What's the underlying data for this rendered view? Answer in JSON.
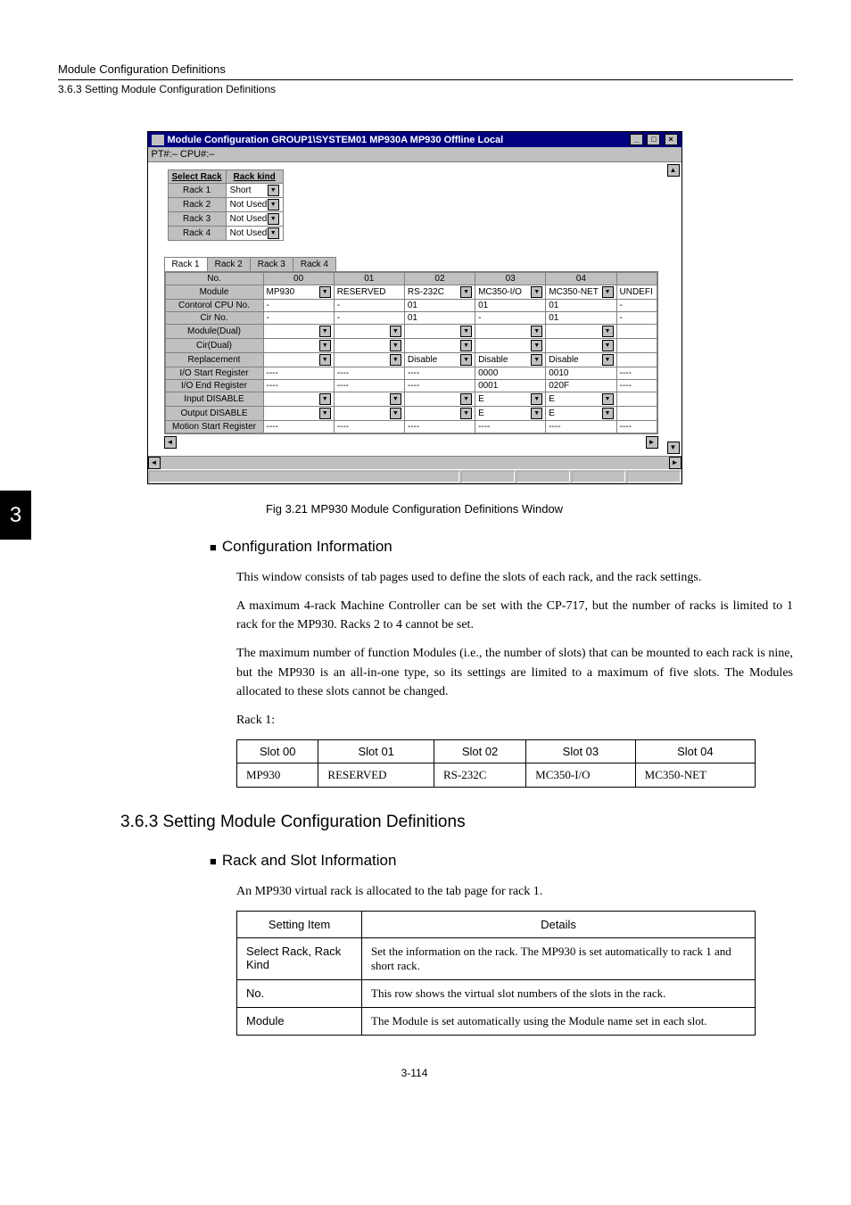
{
  "page_tab": "3",
  "header": {
    "title": "Module Configuration Definitions",
    "sub": "3.6.3  Setting Module Configuration Definitions"
  },
  "window": {
    "title": "Module Configuration    GROUP1\\SYSTEM01  MP930A  MP930         Offline  Local",
    "sub": "PT#:– CPU#:–",
    "rack_header_left": "Select Rack",
    "rack_header_right": "Rack kind",
    "racks": [
      {
        "label": "Rack 1",
        "kind": "Short"
      },
      {
        "label": "Rack 2",
        "kind": "Not Used"
      },
      {
        "label": "Rack 3",
        "kind": "Not Used"
      },
      {
        "label": "Rack 4",
        "kind": "Not Used"
      }
    ],
    "tabs": [
      "Rack 1",
      "Rack 2",
      "Rack 3",
      "Rack 4"
    ],
    "grid": {
      "col_no_header": "No.",
      "cols": [
        "00",
        "01",
        "02",
        "03",
        "04",
        ""
      ],
      "rows": [
        {
          "h": "Module",
          "c": [
            {
              "t": "MP930",
              "d": 1
            },
            {
              "t": "RESERVED"
            },
            {
              "t": "RS-232C",
              "d": 1
            },
            {
              "t": "MC350-I/O",
              "d": 1
            },
            {
              "t": "MC350-NET",
              "d": 1
            },
            {
              "t": "UNDEFI"
            }
          ]
        },
        {
          "h": "Contorol CPU No.",
          "c": [
            {
              "t": "-"
            },
            {
              "t": "-"
            },
            {
              "t": "01"
            },
            {
              "t": "01"
            },
            {
              "t": "01"
            },
            {
              "t": "-"
            }
          ]
        },
        {
          "h": "Cir No.",
          "c": [
            {
              "t": "-"
            },
            {
              "t": "-"
            },
            {
              "t": "01"
            },
            {
              "t": "-"
            },
            {
              "t": "01"
            },
            {
              "t": "-"
            }
          ]
        },
        {
          "h": "Module(Dual)",
          "c": [
            {
              "t": "",
              "d": 1
            },
            {
              "t": "",
              "d": 1
            },
            {
              "t": "",
              "d": 1
            },
            {
              "t": "",
              "d": 1
            },
            {
              "t": "",
              "d": 1
            },
            {
              "t": ""
            }
          ]
        },
        {
          "h": "Cir(Dual)",
          "c": [
            {
              "t": "",
              "d": 1
            },
            {
              "t": "",
              "d": 1
            },
            {
              "t": "",
              "d": 1
            },
            {
              "t": "",
              "d": 1
            },
            {
              "t": "",
              "d": 1
            },
            {
              "t": ""
            }
          ]
        },
        {
          "h": "Replacement",
          "c": [
            {
              "t": "",
              "d": 1
            },
            {
              "t": "",
              "d": 1
            },
            {
              "t": "Disable",
              "d": 1
            },
            {
              "t": "Disable",
              "d": 1
            },
            {
              "t": "Disable",
              "d": 1
            },
            {
              "t": ""
            }
          ]
        },
        {
          "h": "I/O Start Register",
          "c": [
            {
              "t": "----"
            },
            {
              "t": "----"
            },
            {
              "t": "----"
            },
            {
              "t": "0000"
            },
            {
              "t": "0010"
            },
            {
              "t": "----"
            }
          ]
        },
        {
          "h": "I/O End Register",
          "c": [
            {
              "t": "----"
            },
            {
              "t": "----"
            },
            {
              "t": "----"
            },
            {
              "t": "0001"
            },
            {
              "t": "020F"
            },
            {
              "t": "----"
            }
          ]
        },
        {
          "h": "Input DISABLE",
          "c": [
            {
              "t": "",
              "d": 1
            },
            {
              "t": "",
              "d": 1
            },
            {
              "t": "",
              "d": 1
            },
            {
              "t": "E",
              "d": 1
            },
            {
              "t": "E",
              "d": 1
            },
            {
              "t": ""
            }
          ]
        },
        {
          "h": "Output DISABLE",
          "c": [
            {
              "t": "",
              "d": 1
            },
            {
              "t": "",
              "d": 1
            },
            {
              "t": "",
              "d": 1
            },
            {
              "t": "E",
              "d": 1
            },
            {
              "t": "E",
              "d": 1
            },
            {
              "t": ""
            }
          ]
        },
        {
          "h": "Motion Start Register",
          "c": [
            {
              "t": "----"
            },
            {
              "t": "----"
            },
            {
              "t": "----"
            },
            {
              "t": "----"
            },
            {
              "t": "----"
            },
            {
              "t": "----"
            }
          ]
        }
      ]
    }
  },
  "fig_caption": "Fig 3.21  MP930 Module Configuration Definitions Window",
  "section1": {
    "title": "Configuration Information",
    "p1": "This window consists of tab pages used to define the slots of each rack, and the rack settings.",
    "p2": "A maximum 4-rack Machine Controller can be set with the CP-717, but the number of racks is limited to 1 rack for the MP930. Racks 2 to 4 cannot be set.",
    "p3": "The maximum number of function Modules (i.e., the number of slots) that can be mounted to each rack is nine, but the MP930 is an all-in-one type, so its settings are limited to a maximum of five slots. The Modules allocated to these slots cannot be changed.",
    "p4": "Rack 1:"
  },
  "slot_table": {
    "headers": [
      "Slot 00",
      "Slot 01",
      "Slot 02",
      "Slot 03",
      "Slot 04"
    ],
    "row": [
      "MP930",
      "RESERVED",
      "RS-232C",
      "MC350-I/O",
      "MC350-NET"
    ]
  },
  "h2": "3.6.3  Setting Module Configuration Definitions",
  "section2": {
    "title": "Rack and Slot Information",
    "p1": "An MP930 virtual rack is allocated to the tab page for rack 1."
  },
  "setting_table": {
    "headers": [
      "Setting Item",
      "Details"
    ],
    "rows": [
      {
        "item": "Select Rack, Rack Kind",
        "details": "Set the information on the rack. The MP930 is set automatically to rack 1 and short rack."
      },
      {
        "item": "No.",
        "details": "This row shows the virtual slot numbers of the slots in the rack."
      },
      {
        "item": "Module",
        "details": "The Module is set automatically using the Module name set in each slot."
      }
    ]
  },
  "page_num": "3-114"
}
